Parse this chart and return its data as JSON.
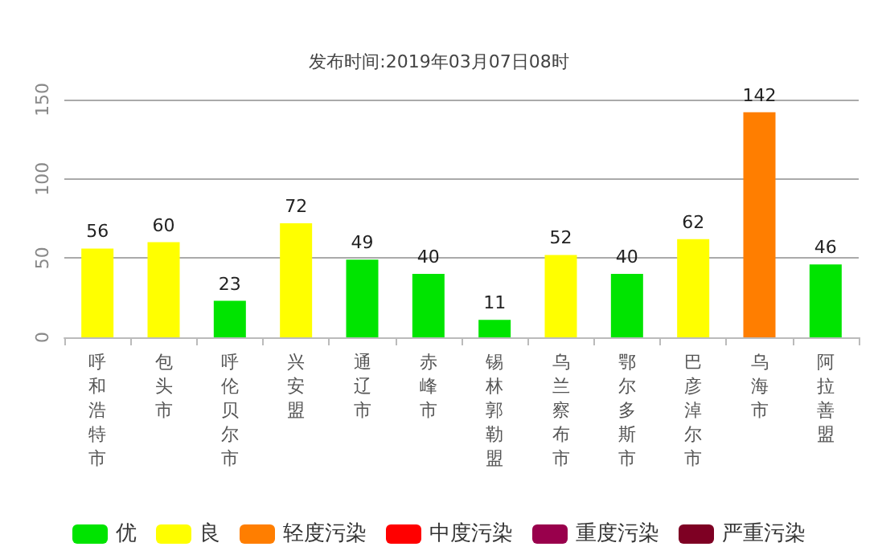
{
  "chart_data": {
    "type": "bar",
    "title": "发布时间:2019年03月07日08时",
    "categories": [
      "呼和浩特市",
      "包头市",
      "呼伦贝尔市",
      "兴安盟",
      "通辽市",
      "赤峰市",
      "锡林郭勒盟",
      "乌兰察布市",
      "鄂尔多斯市",
      "巴彦淖尔市",
      "乌海市",
      "阿拉善盟"
    ],
    "series": [
      {
        "name": "优",
        "color": "#00e400",
        "values": [
          null,
          null,
          23,
          null,
          49,
          40,
          11,
          null,
          40,
          null,
          null,
          46
        ]
      },
      {
        "name": "良",
        "color": "#ffff00",
        "values": [
          56,
          60,
          null,
          72,
          null,
          null,
          null,
          52,
          null,
          62,
          null,
          null
        ]
      },
      {
        "name": "轻度污染",
        "color": "#ff7e00",
        "values": [
          null,
          null,
          null,
          null,
          null,
          null,
          null,
          null,
          null,
          null,
          142,
          null
        ]
      },
      {
        "name": "中度污染",
        "color": "#ff0000",
        "values": [
          null,
          null,
          null,
          null,
          null,
          null,
          null,
          null,
          null,
          null,
          null,
          null
        ]
      },
      {
        "name": "重度污染",
        "color": "#99004c",
        "values": [
          null,
          null,
          null,
          null,
          null,
          null,
          null,
          null,
          null,
          null,
          null,
          null
        ]
      },
      {
        "name": "严重污染",
        "color": "#7e0023",
        "values": [
          null,
          null,
          null,
          null,
          null,
          null,
          null,
          null,
          null,
          null,
          null,
          null
        ]
      }
    ],
    "stacked": true,
    "data_labels": true,
    "ylim": [
      0,
      150
    ],
    "yticks": [
      0,
      50,
      100,
      150
    ],
    "grid": "y",
    "legend": "bottom"
  }
}
